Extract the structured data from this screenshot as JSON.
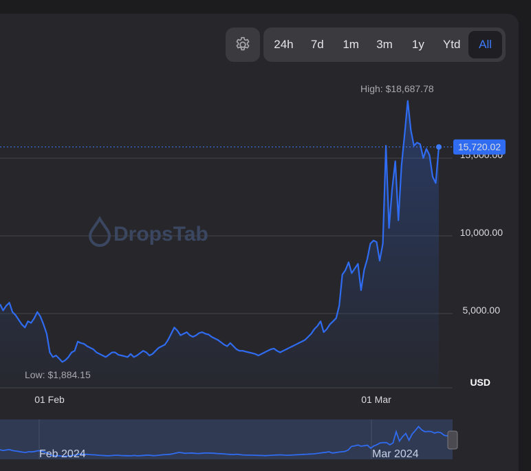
{
  "controls": {
    "gear_icon": "gear-icon",
    "ranges": [
      "24h",
      "7d",
      "1m",
      "3m",
      "1y",
      "Ytd",
      "All"
    ],
    "active_range": "All"
  },
  "watermark": "DropsTab",
  "colors": {
    "accent": "#2f6cf2",
    "active_text": "#3d7bff",
    "background": "#27272b"
  },
  "chart_data": {
    "type": "line",
    "currency": "USD",
    "yticks": [
      "5,000.00",
      "10,000.00",
      "15,000.00"
    ],
    "xticks": [
      "01 Feb",
      "01 Mar"
    ],
    "high_label": "High: $18,687.78",
    "low_label": "Low: $1,884.15",
    "current_label": "15,720.02",
    "current_value": 15720.02,
    "ylim": [
      1000,
      18700
    ],
    "navigator_labels": [
      "Feb 2024",
      "Mar 2024"
    ],
    "series": [
      {
        "values": [
          5600,
          5200,
          5500,
          5700,
          5100,
          4900,
          4600,
          4300,
          4100,
          4500,
          4400,
          4700,
          5100,
          4800,
          4300,
          3700,
          2500,
          2200,
          2300,
          2100,
          1884,
          2000,
          2200,
          2500,
          2600,
          3200,
          3100,
          3050,
          2900,
          2800,
          2700,
          2500,
          2400,
          2300,
          2200,
          2350,
          2500,
          2500,
          2350,
          2300,
          2250,
          2200,
          2400,
          2200,
          2300,
          2450,
          2600,
          2500,
          2300,
          2400,
          2600,
          2800,
          2900,
          3000,
          3300,
          3700,
          4100,
          3900,
          3600,
          3700,
          3800,
          3600,
          3500,
          3600,
          3750,
          3800,
          3700,
          3650,
          3500,
          3400,
          3300,
          3150,
          3000,
          2900,
          3100,
          2900,
          2700,
          2600,
          2600,
          2550,
          2500,
          2450,
          2400,
          2300,
          2400,
          2500,
          2600,
          2700,
          2750,
          2600,
          2500,
          2600,
          2700,
          2800,
          2900,
          3000,
          3100,
          3200,
          3300,
          3500,
          3700,
          4000,
          4200,
          4500,
          3800,
          4000,
          4300,
          4500,
          4700,
          5500,
          7500,
          7800,
          8300,
          7600,
          7900,
          8200,
          6500,
          7800,
          8500,
          9500,
          9700,
          9600,
          8400,
          9500,
          15800,
          10500,
          13000,
          14800,
          11000,
          14500,
          16500,
          18687,
          16800,
          15800,
          16000,
          15900,
          15000,
          15600,
          15200,
          13800,
          13400,
          15720
        ]
      }
    ]
  }
}
